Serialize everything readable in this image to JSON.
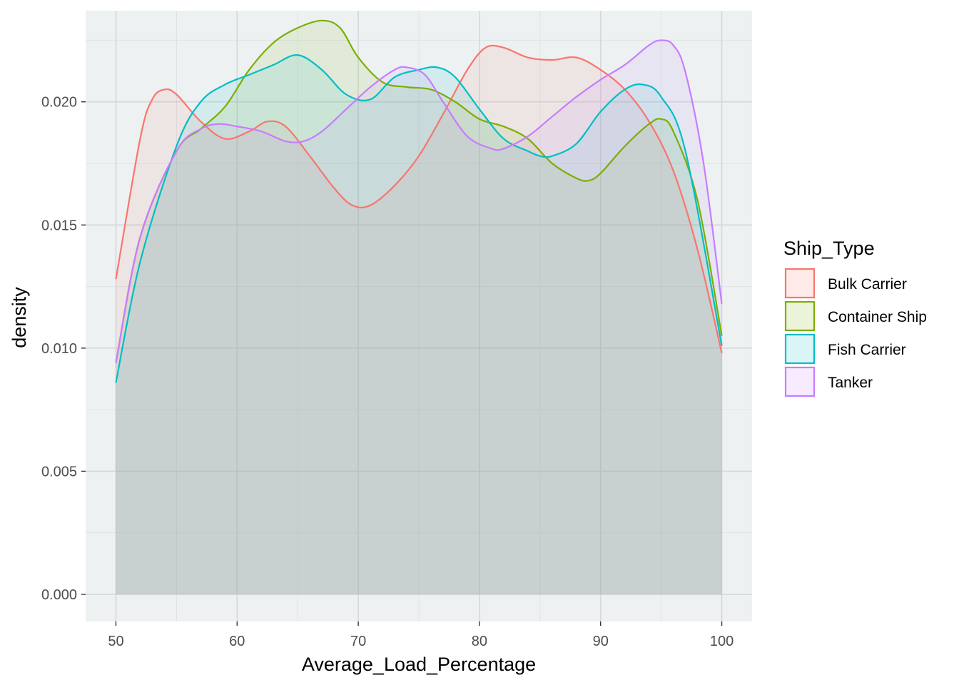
{
  "chart_data": {
    "type": "area",
    "subtype": "density",
    "title": "",
    "xlabel": "Average_Load_Percentage",
    "ylabel": "density",
    "xlim": [
      47.5,
      102.5
    ],
    "ylim": [
      -0.0011,
      0.0237
    ],
    "x_ticks": [
      50,
      60,
      70,
      80,
      90,
      100
    ],
    "y_ticks": [
      0.0,
      0.005,
      0.01,
      0.015,
      0.02
    ],
    "y_tick_labels": [
      "0.000",
      "0.005",
      "0.010",
      "0.015",
      "0.020"
    ],
    "grid": true,
    "background": "#edf1f2",
    "legend": {
      "title": "Ship_Type",
      "position": "right"
    },
    "series": [
      {
        "name": "Bulk Carrier",
        "color": "#f8766d",
        "x": [
          50,
          52,
          53,
          54,
          55,
          57,
          59,
          61,
          62.5,
          64,
          66,
          68,
          69.5,
          71,
          73,
          75,
          77,
          79,
          80.5,
          82,
          84,
          86,
          88,
          90,
          92,
          94,
          96,
          98,
          100
        ],
        "y": [
          0.0128,
          0.0185,
          0.0201,
          0.0205,
          0.0203,
          0.0192,
          0.0185,
          0.0188,
          0.0192,
          0.019,
          0.0178,
          0.0165,
          0.0158,
          0.0158,
          0.0166,
          0.0178,
          0.0195,
          0.0213,
          0.0222,
          0.0222,
          0.0218,
          0.0217,
          0.0218,
          0.0213,
          0.0205,
          0.0192,
          0.0172,
          0.014,
          0.0098
        ]
      },
      {
        "name": "Container Ship",
        "color": "#7cae00",
        "x": [
          50,
          52,
          55,
          57,
          59,
          61,
          63,
          65,
          67,
          68.5,
          70,
          72,
          74,
          76,
          78,
          80,
          82,
          84,
          86,
          88,
          89,
          90,
          92,
          94,
          95,
          96,
          98,
          100
        ],
        "y": [
          0.0094,
          0.0145,
          0.018,
          0.0189,
          0.0198,
          0.0213,
          0.0224,
          0.023,
          0.0233,
          0.023,
          0.0218,
          0.0208,
          0.0206,
          0.0205,
          0.02,
          0.0193,
          0.019,
          0.0185,
          0.0175,
          0.0169,
          0.0168,
          0.0171,
          0.0182,
          0.0191,
          0.0193,
          0.0188,
          0.016,
          0.0105
        ]
      },
      {
        "name": "Fish Carrier",
        "color": "#00bfc4",
        "x": [
          50,
          52,
          55,
          57,
          59,
          61,
          63,
          65,
          67,
          69,
          71,
          73,
          75,
          76.5,
          78,
          80,
          82,
          84,
          85,
          86,
          88,
          90,
          92,
          93.5,
          95,
          97,
          100
        ],
        "y": [
          0.0086,
          0.0135,
          0.0182,
          0.02,
          0.0207,
          0.0211,
          0.0215,
          0.0219,
          0.0213,
          0.0203,
          0.0201,
          0.021,
          0.0213,
          0.0214,
          0.021,
          0.0197,
          0.0185,
          0.018,
          0.0178,
          0.0178,
          0.0183,
          0.0196,
          0.0205,
          0.0207,
          0.0202,
          0.018,
          0.0101
        ]
      },
      {
        "name": "Tanker",
        "color": "#c77cff",
        "x": [
          50,
          52,
          55,
          57,
          58.5,
          60,
          62,
          64,
          65.5,
          67,
          69,
          71,
          73,
          74,
          75.5,
          77,
          79,
          81,
          82,
          84,
          86,
          88,
          90,
          92,
          94,
          95,
          96,
          97,
          98.5,
          100
        ],
        "y": [
          0.0094,
          0.0145,
          0.018,
          0.0189,
          0.0191,
          0.019,
          0.0188,
          0.0184,
          0.0184,
          0.0188,
          0.0197,
          0.0206,
          0.0213,
          0.0214,
          0.0211,
          0.02,
          0.0186,
          0.0181,
          0.0181,
          0.0186,
          0.0194,
          0.0202,
          0.0209,
          0.0215,
          0.0223,
          0.0225,
          0.0223,
          0.0212,
          0.0175,
          0.0118
        ]
      }
    ]
  }
}
